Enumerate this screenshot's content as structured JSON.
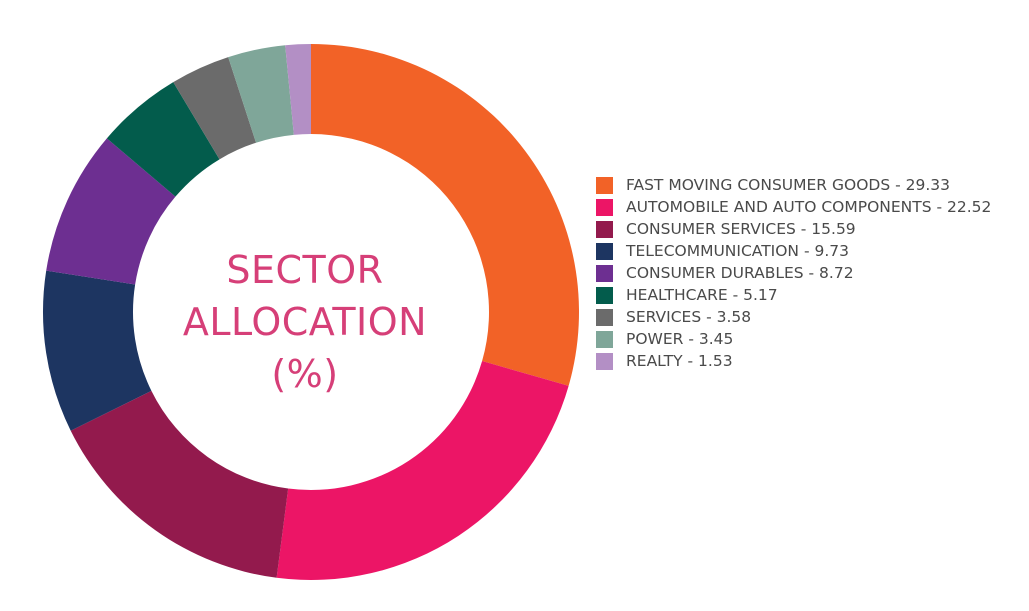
{
  "center_title": {
    "line1": "SECTOR",
    "line2": "ALLOCATION",
    "line3": "(%)"
  },
  "chart_data": {
    "type": "pie",
    "donut": true,
    "title": "SECTOR ALLOCATION (%)",
    "categories": [
      "FAST MOVING CONSUMER GOODS",
      "AUTOMOBILE AND AUTO COMPONENTS",
      "CONSUMER SERVICES",
      "TELECOMMUNICATION",
      "CONSUMER DURABLES",
      "HEALTHCARE",
      "SERVICES",
      "POWER",
      "REALTY"
    ],
    "values": [
      29.33,
      22.52,
      15.59,
      9.73,
      8.72,
      5.17,
      3.58,
      3.45,
      1.53
    ],
    "colors": [
      "#f26227",
      "#ec1566",
      "#931a4d",
      "#1d3561",
      "#6d2f91",
      "#035c4c",
      "#6b6b6b",
      "#7fa699",
      "#b38fc5"
    ],
    "legend_labels": [
      "FAST MOVING CONSUMER GOODS - 29.33",
      "AUTOMOBILE AND AUTO COMPONENTS - 22.52",
      "CONSUMER SERVICES - 15.59",
      "TELECOMMUNICATION - 9.73",
      "CONSUMER DURABLES - 8.72",
      "HEALTHCARE - 5.17",
      "SERVICES - 3.58",
      "POWER - 3.45",
      "REALTY - 1.53"
    ],
    "legend_placement": "right"
  }
}
